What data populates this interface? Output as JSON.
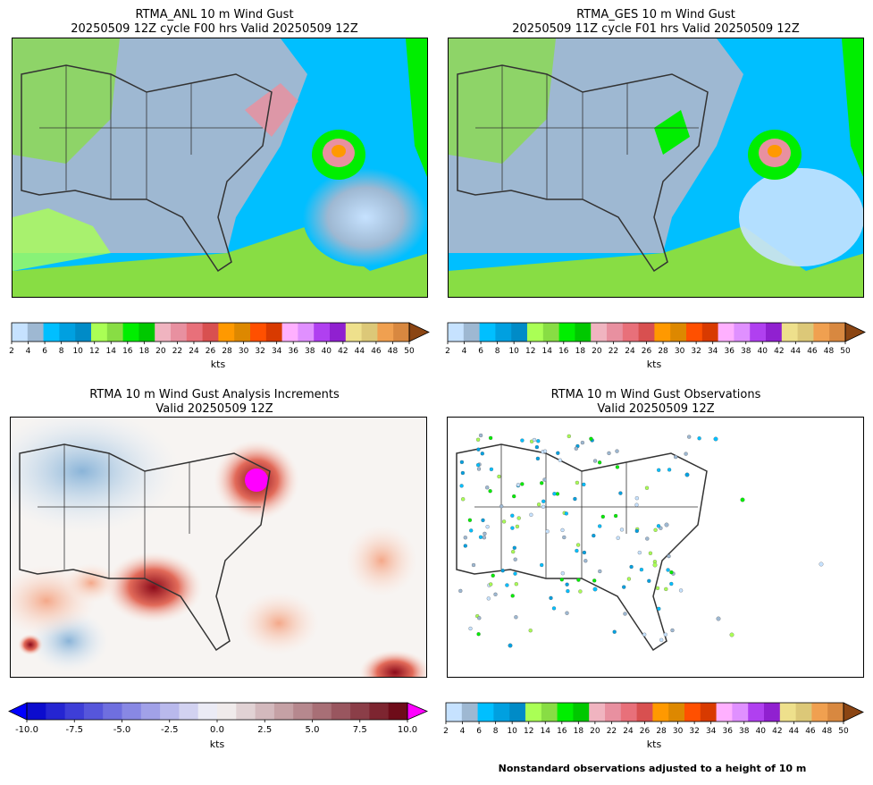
{
  "panels": [
    {
      "title_line1": "RTMA_ANL 10 m Wind Gust",
      "title_line2": "20250509 12Z cycle F00 hrs Valid 20250509 12Z"
    },
    {
      "title_line1": "RTMA_GES 10 m Wind Gust",
      "title_line2": "20250509 11Z cycle F01 hrs Valid 20250509 12Z"
    },
    {
      "title_line1": "RTMA 10 m Wind Gust Analysis Increments",
      "title_line2": "Valid 20250509 12Z"
    },
    {
      "title_line1": "RTMA 10 m Wind Gust Observations",
      "title_line2": "Valid 20250509 12Z"
    }
  ],
  "colorbar_units": "kts",
  "footnote": "Nonstandard observations adjusted to a height of 10 m",
  "colors": {
    "gust_scale": [
      "#c6e2ff",
      "#9eb8d2",
      "#00bfff",
      "#00a0e0",
      "#008bc7",
      "#aaff55",
      "#88dd44",
      "#00ee00",
      "#00c800",
      "#f0b4c0",
      "#e890a0",
      "#e8707a",
      "#d85050",
      "#ff9900",
      "#dd8800",
      "#ff5000",
      "#d83a00",
      "#ffb0ff",
      "#e090ff",
      "#b040f0",
      "#9020d0",
      "#eee08c",
      "#dcc878",
      "#f0a050",
      "#d88840",
      "#8b4513"
    ],
    "diverging_low": "#0000cc",
    "diverging_mid": "#f7f7f7",
    "diverging_high": "#67000d",
    "extend_low": "#0000ff",
    "extend_high": "#ff00ff",
    "land_outline": "#333333"
  },
  "chart_data": [
    {
      "type": "heatmap",
      "title": "RTMA_ANL 10 m Wind Gust",
      "subtitle": "20250509 12Z cycle F00 hrs Valid 20250509 12Z",
      "colorbar": {
        "label": "kts",
        "ticks": [
          2,
          4,
          6,
          8,
          10,
          12,
          14,
          16,
          18,
          20,
          22,
          24,
          26,
          28,
          30,
          32,
          34,
          36,
          38,
          40,
          42,
          44,
          46,
          48,
          50
        ],
        "extend": "max"
      }
    },
    {
      "type": "heatmap",
      "title": "RTMA_GES 10 m Wind Gust",
      "subtitle": "20250509 11Z cycle F01 hrs Valid 20250509 12Z",
      "colorbar": {
        "label": "kts",
        "ticks": [
          2,
          4,
          6,
          8,
          10,
          12,
          14,
          16,
          18,
          20,
          22,
          24,
          26,
          28,
          30,
          32,
          34,
          36,
          38,
          40,
          42,
          44,
          46,
          48,
          50
        ],
        "extend": "max"
      }
    },
    {
      "type": "heatmap",
      "title": "RTMA 10 m Wind Gust Analysis Increments",
      "subtitle": "Valid 20250509 12Z",
      "colorbar": {
        "label": "kts",
        "ticks": [
          -10.0,
          -7.5,
          -5.0,
          -2.5,
          0.0,
          2.5,
          5.0,
          7.5,
          10.0
        ],
        "tick_labels": [
          "-10.0",
          "-7.5",
          "-5.0",
          "-2.5",
          "0.0",
          "2.5",
          "5.0",
          "7.5",
          "10.0"
        ],
        "range": [
          -10,
          10
        ],
        "extend": "both"
      }
    },
    {
      "type": "scatter",
      "title": "RTMA 10 m Wind Gust Observations",
      "subtitle": "Valid 20250509 12Z",
      "colorbar": {
        "label": "kts",
        "ticks": [
          2,
          4,
          6,
          8,
          10,
          12,
          14,
          16,
          18,
          20,
          22,
          24,
          26,
          28,
          30,
          32,
          34,
          36,
          38,
          40,
          42,
          44,
          46,
          48,
          50
        ],
        "extend": "max"
      }
    }
  ]
}
